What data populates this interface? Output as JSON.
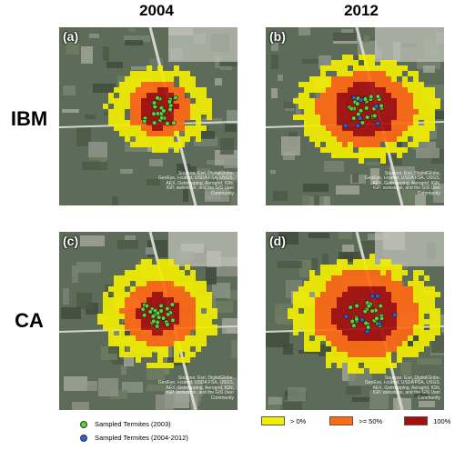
{
  "columns": [
    "2004",
    "2012"
  ],
  "rows": [
    "IBM",
    "CA"
  ],
  "panels": [
    {
      "label": "(a)",
      "model": "IBM",
      "year": "2004"
    },
    {
      "label": "(b)",
      "model": "IBM",
      "year": "2012"
    },
    {
      "label": "(c)",
      "model": "CA",
      "year": "2004"
    },
    {
      "label": "(d)",
      "model": "CA",
      "year": "2012"
    }
  ],
  "attribution": [
    "Sources: Esri, DigitalGlobe,",
    "GeoEye, i-cubed, USDA FSA, USGS,",
    "AEX, Getmapping, Aerogrid, IGN,",
    "IGP, swisstopo, and the GIS User",
    "Community"
  ],
  "legend": {
    "points": [
      {
        "label": "Sampled Termites (2003)",
        "color": "#56d43a"
      },
      {
        "label": "Sampled Termites (2004-2012)",
        "color": "#2a63d8"
      }
    ],
    "classes": [
      {
        "label": "> 0%",
        "color": "#f2ee00"
      },
      {
        "label": ">= 50%",
        "color": "#ff6a13"
      },
      {
        "label": "100%",
        "color": "#a50f0f"
      }
    ]
  }
}
